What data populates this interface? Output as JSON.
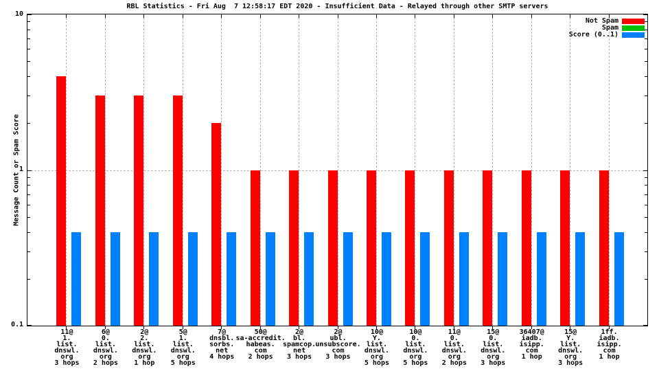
{
  "title": "RBL Statistics - Fri Aug  7 12:58:17 EDT 2020 - Insufficient Data - Relayed through other SMTP servers",
  "ylabel": "Message Count or Spam Score",
  "legend": [
    {
      "label": "Not Spam",
      "color": "#ff0000"
    },
    {
      "label": "Spam",
      "color": "#00c000"
    },
    {
      "label": "Score (0..1)",
      "color": "#0080ff"
    }
  ],
  "chart_data": {
    "type": "bar",
    "title": "RBL Statistics - Fri Aug  7 12:58:17 EDT 2020 - Insufficient Data - Relayed through other SMTP servers",
    "ylabel": "Message Count or Spam Score",
    "yscale": "log",
    "ylim": [
      0.1,
      10
    ],
    "ytick_labels": [
      "10",
      "1",
      "0.1"
    ],
    "grid": true,
    "legend_position": "top-right",
    "categories": [
      [
        "11@",
        "1.",
        "list.",
        "dnswl.",
        "org",
        "3 hops"
      ],
      [
        "6@",
        "0.",
        "list.",
        "dnswl.",
        "org",
        "2 hops"
      ],
      [
        "2@",
        "2.",
        "list.",
        "dnswl.",
        "org",
        "1 hop"
      ],
      [
        "5@",
        "1.",
        "list.",
        "dnswl.",
        "org",
        "5 hops"
      ],
      [
        "7@",
        "dnsbl.",
        "sorbs.",
        "net",
        "4 hops"
      ],
      [
        "50@",
        "sa-accredit.",
        "habeas.",
        "com",
        "2 hops"
      ],
      [
        "2@",
        "bl.",
        "spamcop.",
        "net",
        "3 hops"
      ],
      [
        "2@",
        "ubl.",
        "unsubscore.",
        "com",
        "3 hops"
      ],
      [
        "10@",
        "Y.",
        "list.",
        "dnswl.",
        "org",
        "5 hops"
      ],
      [
        "10@",
        "0.",
        "list.",
        "dnswl.",
        "org",
        "5 hops"
      ],
      [
        "11@",
        "0.",
        "list.",
        "dnswl.",
        "org",
        "2 hops"
      ],
      [
        "15@",
        "0.",
        "list.",
        "dnswl.",
        "org",
        "3 hops"
      ],
      [
        "36407@",
        "iadb.",
        "isipp.",
        "com",
        "1 hop"
      ],
      [
        "15@",
        "Y.",
        "list.",
        "dnswl.",
        "org",
        "3 hops"
      ],
      [
        "1ff.",
        "iadb.",
        "isipp.",
        "com",
        "1 hop"
      ]
    ],
    "series": [
      {
        "name": "Not Spam",
        "color": "#ff0000",
        "values": [
          4,
          3,
          3,
          3,
          2,
          1,
          1,
          1,
          1,
          1,
          1,
          1,
          1,
          1,
          1
        ]
      },
      {
        "name": "Score (0..1)",
        "color": "#0080ff",
        "values": [
          0.4,
          0.4,
          0.4,
          0.4,
          0.4,
          0.4,
          0.4,
          0.4,
          0.4,
          0.4,
          0.4,
          0.4,
          0.4,
          0.4,
          0.4
        ]
      }
    ]
  }
}
